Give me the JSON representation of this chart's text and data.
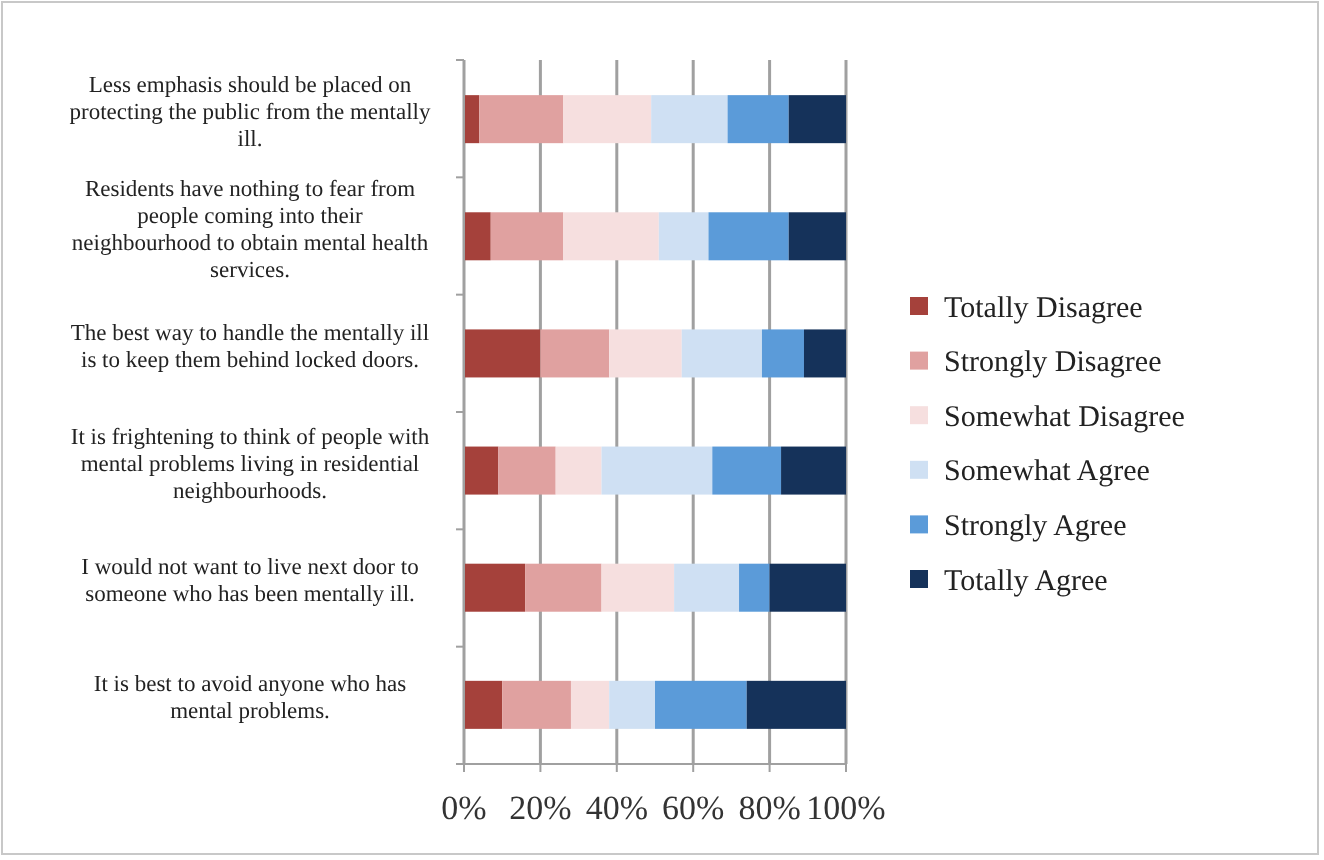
{
  "chart_data": {
    "type": "bar",
    "orientation": "horizontal",
    "stacked": true,
    "categories": [
      "Less emphasis should be placed on protecting the public from the mentally ill.",
      "Residents have nothing to fear from people coming into their neighbourhood to obtain mental health services.",
      "The best way to handle the mentally ill is to keep them behind locked doors.",
      "It is frightening to think of people with mental problems living in residential neighbourhoods.",
      "I would not want to live next door to someone who has been mentally ill.",
      "It is best to avoid anyone who has mental problems."
    ],
    "series": [
      {
        "name": "Totally Disagree",
        "color": "#a5413b",
        "values": [
          4,
          7,
          20,
          9,
          16,
          10
        ]
      },
      {
        "name": "Strongly Disagree",
        "color": "#e0a1a0",
        "values": [
          22,
          19,
          18,
          15,
          20,
          18
        ]
      },
      {
        "name": "Somewhat Disagree",
        "color": "#f6dfdf",
        "values": [
          23,
          25,
          19,
          12,
          19,
          10
        ]
      },
      {
        "name": "Somewhat Agree",
        "color": "#cfe0f3",
        "values": [
          20,
          13,
          21,
          29,
          17,
          12
        ]
      },
      {
        "name": "Strongly Agree",
        "color": "#5b9bd9",
        "values": [
          16,
          21,
          11,
          18,
          8,
          24
        ]
      },
      {
        "name": "Totally Agree",
        "color": "#15325a",
        "values": [
          15,
          15,
          11,
          17,
          20,
          26
        ]
      }
    ],
    "xlim": [
      0,
      100
    ],
    "xticks": [
      {
        "value": 0,
        "label": "0%"
      },
      {
        "value": 20,
        "label": "20%"
      },
      {
        "value": 40,
        "label": "40%"
      },
      {
        "value": 60,
        "label": "60%"
      },
      {
        "value": 80,
        "label": "80%"
      },
      {
        "value": 100,
        "label": "100%"
      }
    ],
    "grid": "x",
    "legend": "right"
  }
}
